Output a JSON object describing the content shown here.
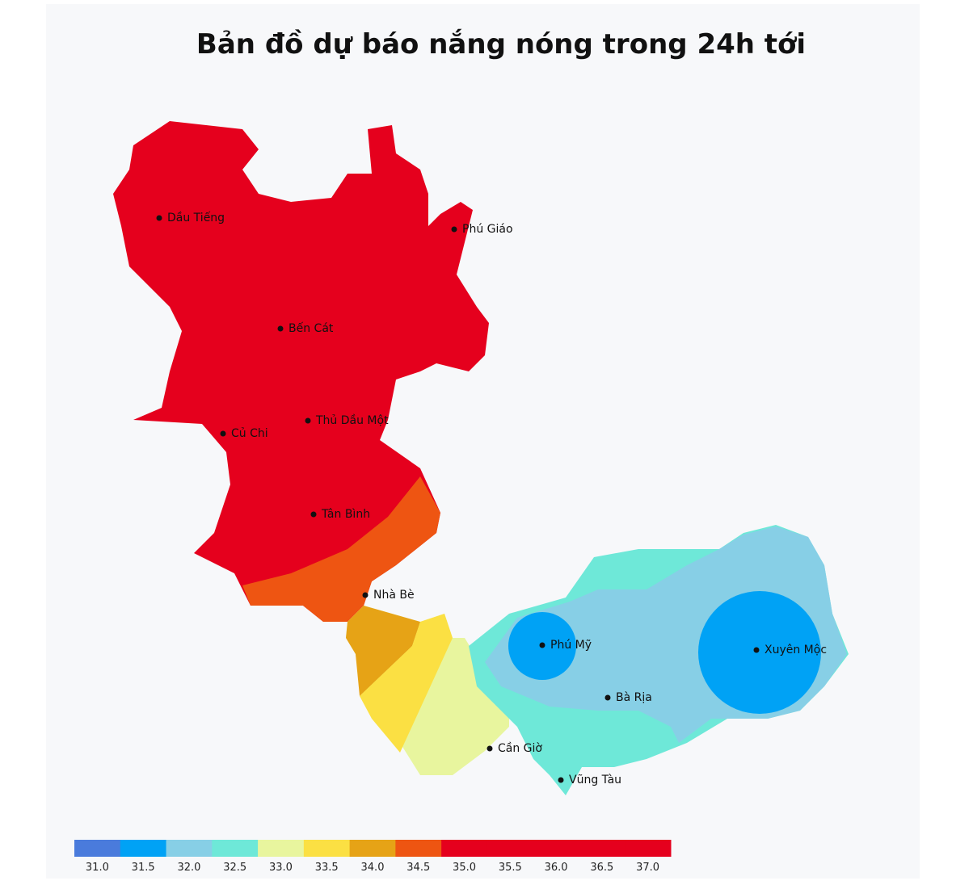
{
  "title": "Bản đồ dự báo nắng nóng trong 24h tới",
  "places": [
    "Dầu Tiếng",
    "Phú Giáo",
    "Bến Cát",
    "Thủ Dầu Một",
    "Củ Chi",
    "Tân Bình",
    "Nhà Bè",
    "Phú Mỹ",
    "Xuyên Mộc",
    "Bà Rịa",
    "Cần Giờ",
    "Vũng Tàu"
  ],
  "legend": {
    "ticks": [
      {
        "value": 31,
        "label": "31.0"
      },
      {
        "value": 31.5,
        "label": "31.5"
      },
      {
        "value": 32,
        "label": "32.0"
      },
      {
        "value": 32.5,
        "label": "32.5"
      },
      {
        "value": 33,
        "label": "33.0"
      },
      {
        "value": 33.5,
        "label": "33.5"
      },
      {
        "value": 34,
        "label": "34.0"
      },
      {
        "value": 34.5,
        "label": "34.5"
      },
      {
        "value": 35,
        "label": "35.0"
      },
      {
        "value": 35.5,
        "label": "35.5"
      },
      {
        "value": 36,
        "label": "36.0"
      },
      {
        "value": 36.5,
        "label": "36.5"
      },
      {
        "value": 37,
        "label": "37.0"
      }
    ],
    "colors": [
      "#4a7bdc",
      "#00a2f5",
      "#87cfe6",
      "#6ee8d8",
      "#e8f59e",
      "#fbe043",
      "#e6a316",
      "#ee5512",
      "#e5001d",
      "#e5001d",
      "#e5001d",
      "#e5001d",
      "#e5001d"
    ]
  }
}
